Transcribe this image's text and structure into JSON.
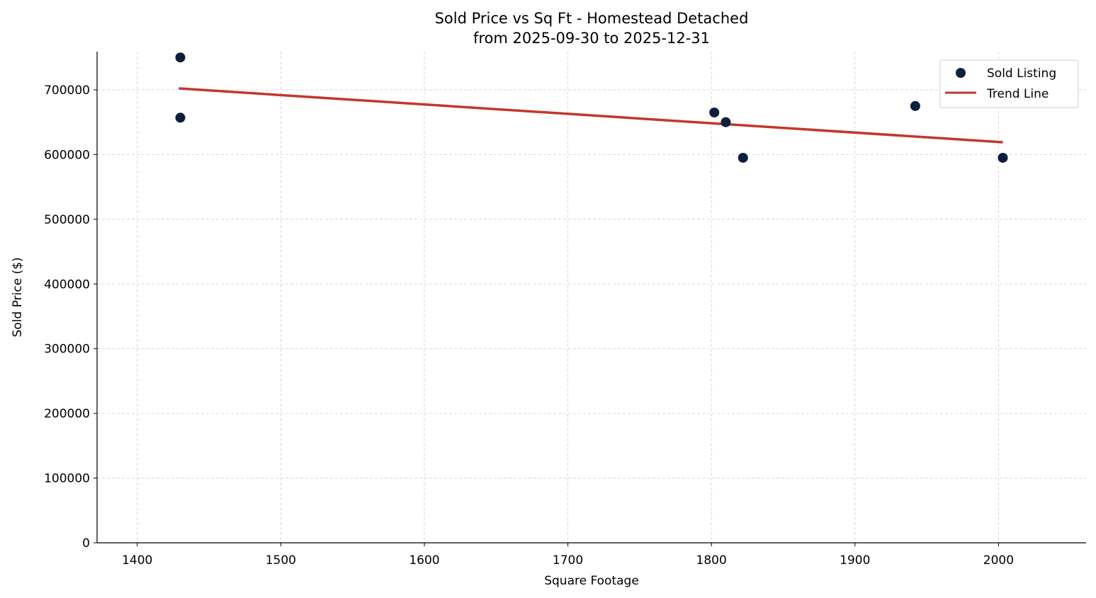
{
  "chart_data": {
    "type": "scatter",
    "title": "Sold Price vs Sq Ft - Homestead Detached",
    "subtitle": "from 2025-09-30 to 2025-12-31",
    "xlabel": "Square Footage",
    "ylabel": "Sold Price ($)",
    "xlim": [
      1372,
      2061
    ],
    "ylim": [
      0,
      759000
    ],
    "xticks": [
      1400,
      1500,
      1600,
      1700,
      1800,
      1900,
      2000
    ],
    "yticks": [
      0,
      100000,
      200000,
      300000,
      400000,
      500000,
      600000,
      700000
    ],
    "grid": true,
    "legend_position": "top-right",
    "series": [
      {
        "name": "Sold Listing",
        "kind": "scatter",
        "color": "#0d1f3c",
        "points": [
          {
            "x": 1430,
            "y": 750000
          },
          {
            "x": 1430,
            "y": 657000
          },
          {
            "x": 1802,
            "y": 665000
          },
          {
            "x": 1810,
            "y": 650000
          },
          {
            "x": 1822,
            "y": 595000
          },
          {
            "x": 1942,
            "y": 675000
          },
          {
            "x": 2003,
            "y": 595000
          }
        ]
      },
      {
        "name": "Trend Line",
        "kind": "line",
        "color": "#c0392b",
        "points": [
          {
            "x": 1429,
            "y": 702200
          },
          {
            "x": 2003,
            "y": 619000
          }
        ]
      }
    ]
  }
}
